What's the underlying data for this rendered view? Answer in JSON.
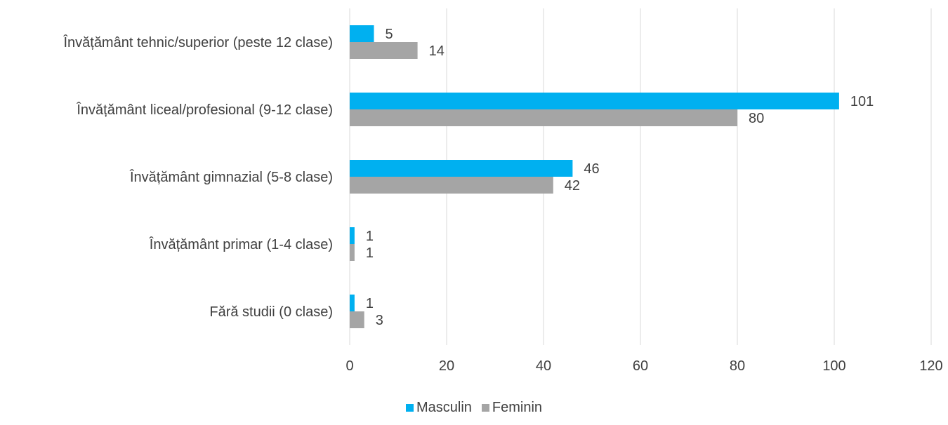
{
  "chart_data": {
    "type": "bar",
    "orientation": "horizontal",
    "categories": [
      "Învățământ tehnic/superior (peste 12 clase)",
      "Învățământ liceal/profesional (9-12 clase)",
      "Învățământ gimnazial (5-8 clase)",
      "Învățământ primar (1-4 clase)",
      "Fără studii (0 clase)"
    ],
    "series": [
      {
        "name": "Masculin",
        "color": "#00b0f0",
        "values": [
          5,
          101,
          46,
          1,
          1
        ]
      },
      {
        "name": "Feminin",
        "color": "#a5a5a5",
        "values": [
          14,
          80,
          42,
          1,
          3
        ]
      }
    ],
    "x_ticks": [
      0,
      20,
      40,
      60,
      80,
      100,
      120
    ],
    "xlim": [
      0,
      120
    ],
    "grid": true,
    "legend_position": "bottom",
    "title": "",
    "xlabel": "",
    "ylabel": ""
  }
}
